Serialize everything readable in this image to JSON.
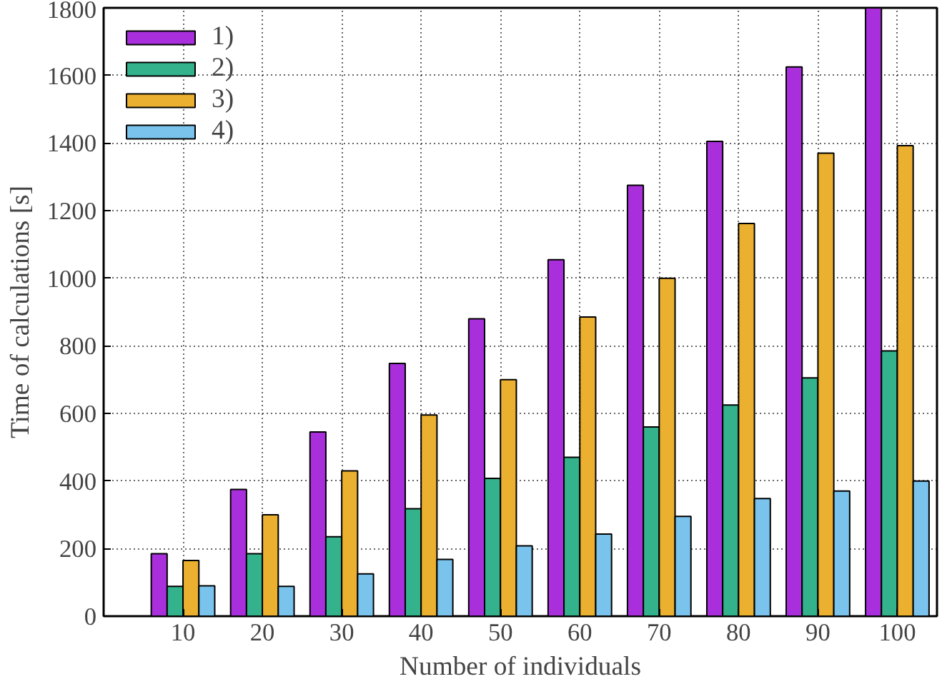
{
  "chart_data": {
    "type": "bar",
    "xlabel": "Number of individuals",
    "ylabel": "Time of calculations [s]",
    "categories": [
      "10",
      "20",
      "30",
      "40",
      "50",
      "60",
      "70",
      "80",
      "90",
      "100"
    ],
    "series": [
      {
        "name": "1)",
        "color": "#a92fdc",
        "values": [
          185,
          375,
          545,
          748,
          880,
          1055,
          1275,
          1405,
          1625,
          1800
        ]
      },
      {
        "name": "2)",
        "color": "#33b28c",
        "values": [
          88,
          185,
          235,
          318,
          408,
          470,
          560,
          625,
          705,
          785
        ]
      },
      {
        "name": "3)",
        "color": "#ebb030",
        "values": [
          165,
          300,
          430,
          595,
          700,
          885,
          1000,
          1162,
          1370,
          1392
        ]
      },
      {
        "name": "4)",
        "color": "#79c3ec",
        "values": [
          90,
          88,
          125,
          168,
          208,
          243,
          295,
          348,
          370,
          400
        ]
      }
    ],
    "ylim": [
      0,
      1800
    ],
    "yticks": [
      0,
      200,
      400,
      600,
      800,
      1000,
      1200,
      1400,
      1600,
      1800
    ],
    "grid": true,
    "legend": "top left"
  }
}
